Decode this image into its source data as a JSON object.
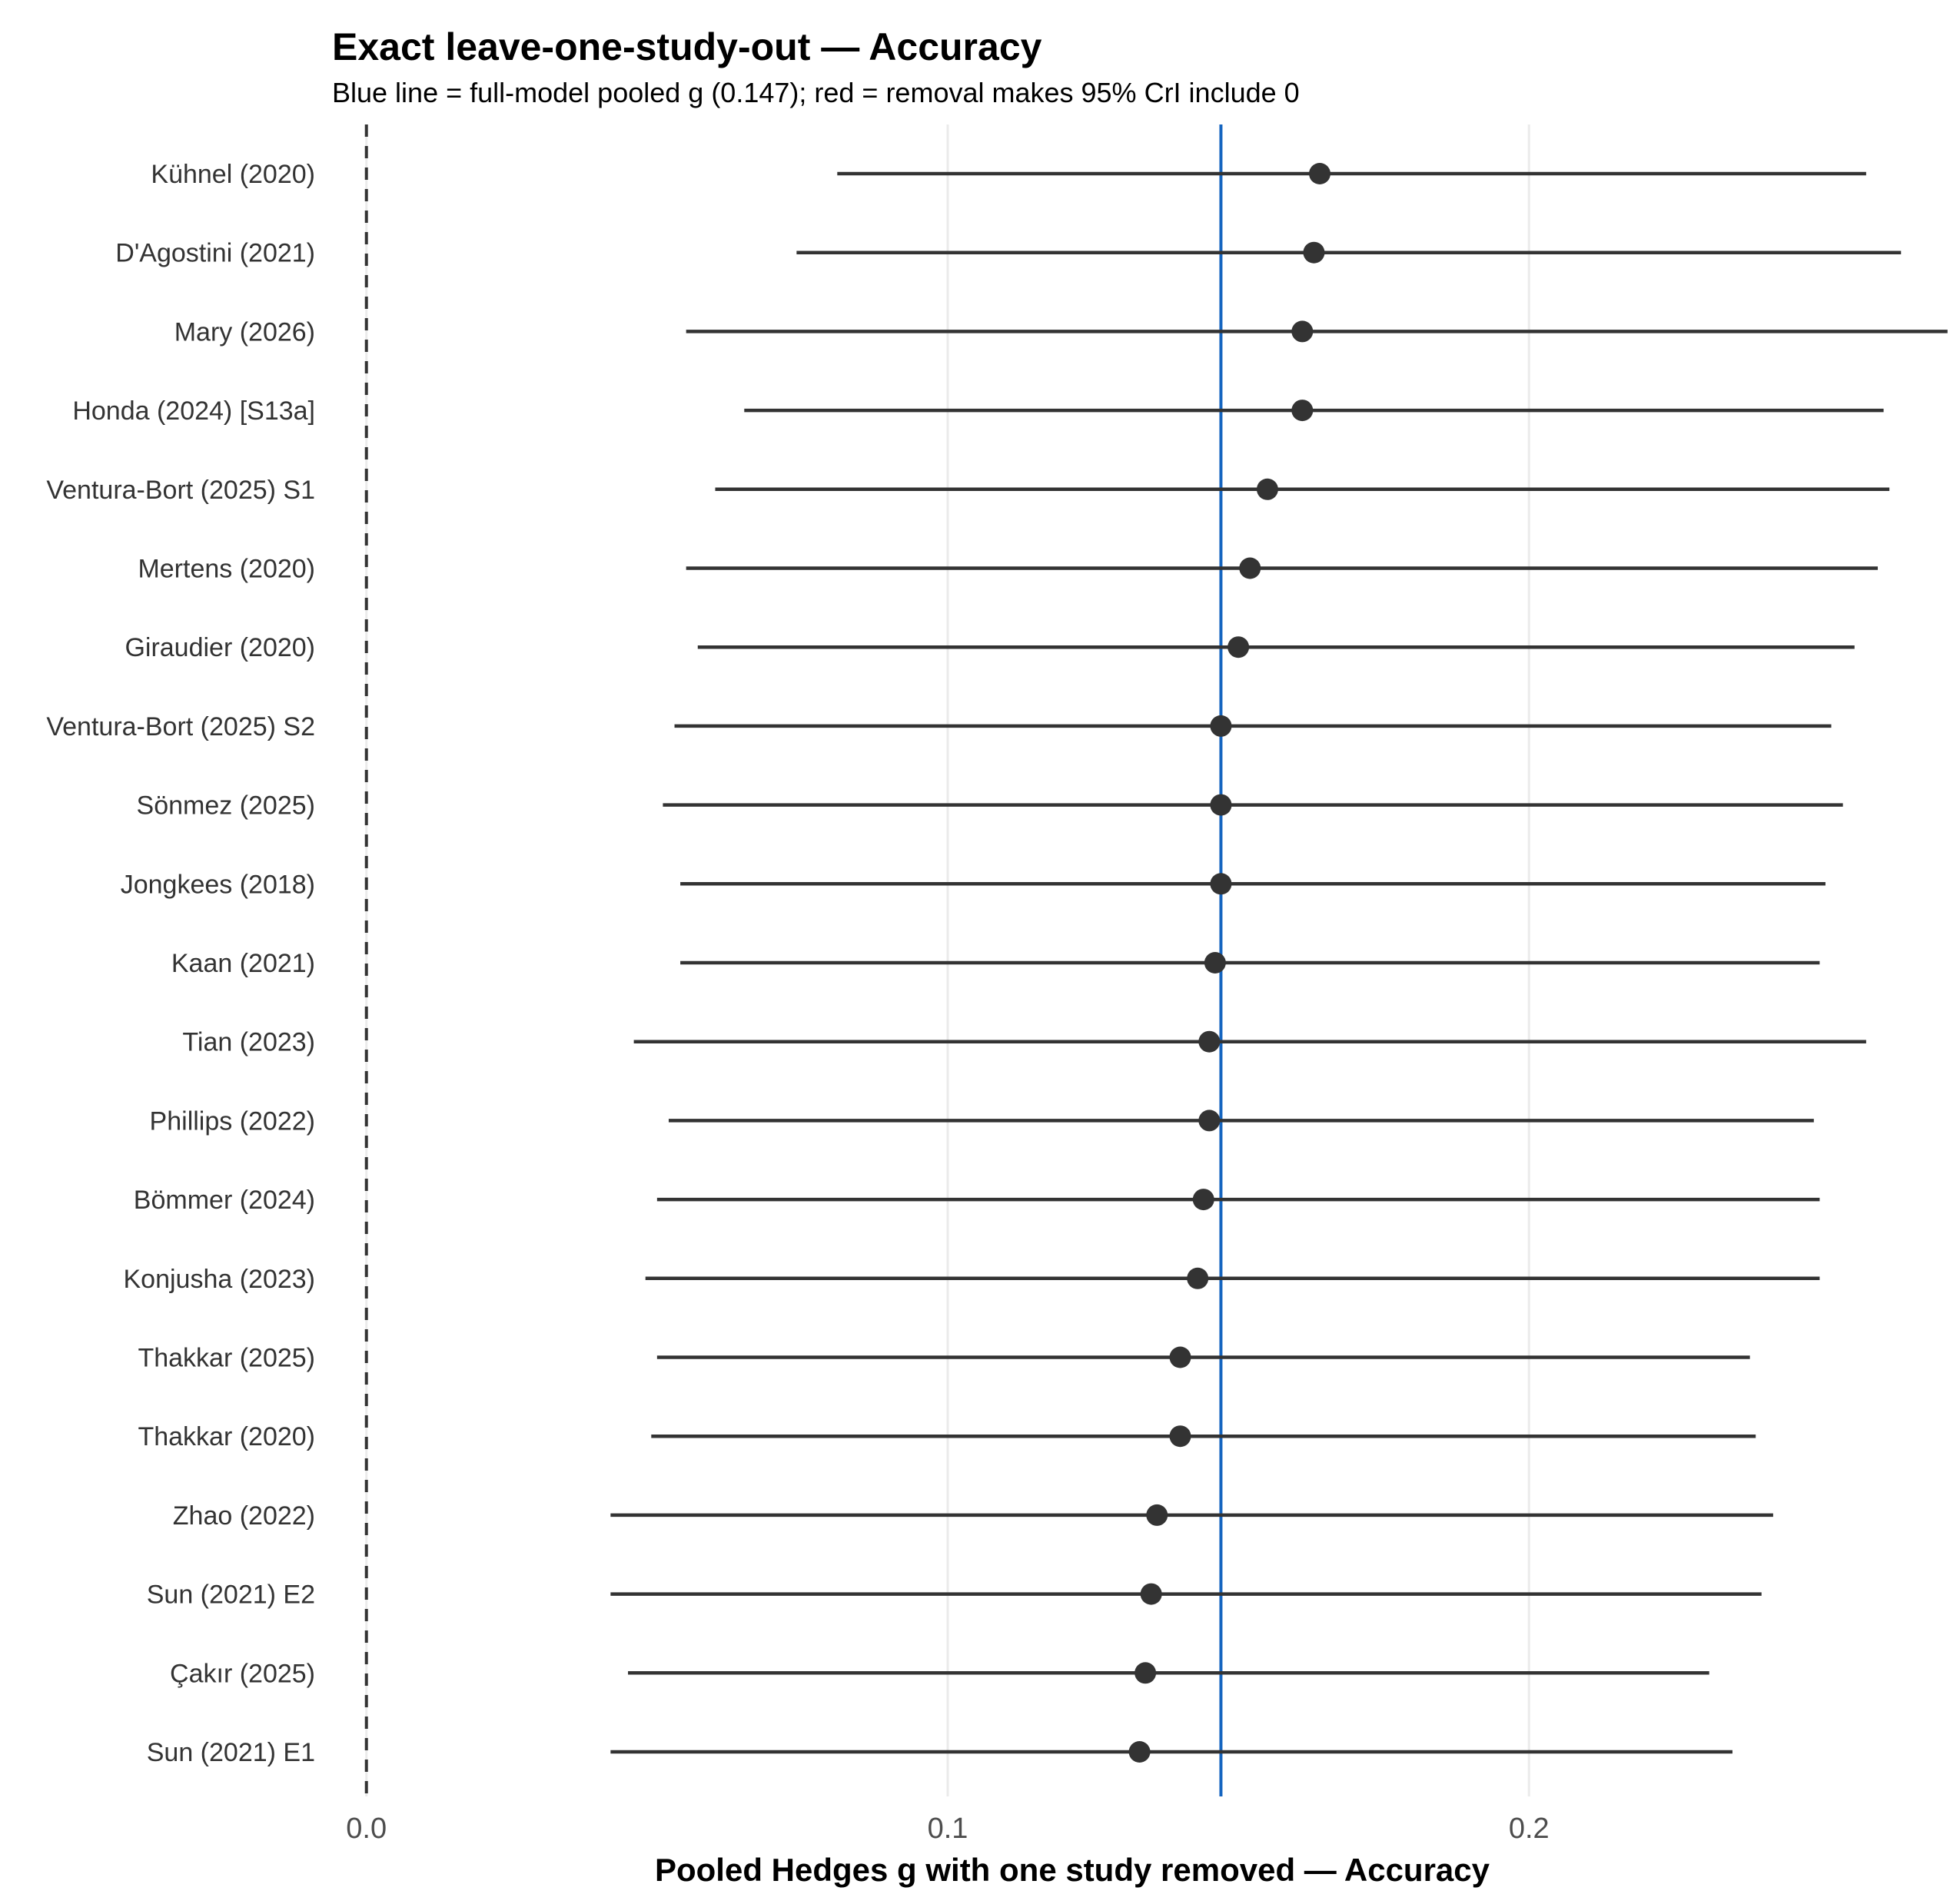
{
  "chart_data": {
    "type": "forest",
    "title": "Exact leave-one-study-out — Accuracy",
    "subtitle": "Blue line = full-model pooled g (0.147); red = removal makes 95% CrI include 0",
    "xlabel": "Pooled Hedges g with one study removed — Accuracy",
    "ylabel": "",
    "xlim": [
      -0.0075,
      0.2715
    ],
    "xticks": [
      0.0,
      0.1,
      0.2
    ],
    "xtick_labels": [
      "0.0",
      "0.1",
      "0.2"
    ],
    "reference_zero": 0.0,
    "full_model_pooled_g": 0.147,
    "grid": "vertical major gridlines",
    "colors": {
      "point": "#333333",
      "interval": "#333333",
      "full_model_line": "#1565c0",
      "zero_line": "#333333",
      "grid": "#ebebeb"
    },
    "studies": [
      {
        "name": "Kühnel (2020)",
        "estimate": 0.164,
        "lower": 0.081,
        "upper": 0.258
      },
      {
        "name": "D'Agostini (2021)",
        "estimate": 0.163,
        "lower": 0.074,
        "upper": 0.264
      },
      {
        "name": "Mary (2026)",
        "estimate": 0.161,
        "lower": 0.055,
        "upper": 0.272
      },
      {
        "name": "Honda (2024) [S13a]",
        "estimate": 0.161,
        "lower": 0.065,
        "upper": 0.261
      },
      {
        "name": "Ventura-Bort (2025) S1",
        "estimate": 0.155,
        "lower": 0.06,
        "upper": 0.262
      },
      {
        "name": "Mertens (2020)",
        "estimate": 0.152,
        "lower": 0.055,
        "upper": 0.26
      },
      {
        "name": "Giraudier (2020)",
        "estimate": 0.15,
        "lower": 0.057,
        "upper": 0.256
      },
      {
        "name": "Ventura-Bort (2025) S2",
        "estimate": 0.147,
        "lower": 0.053,
        "upper": 0.252
      },
      {
        "name": "Sönmez (2025)",
        "estimate": 0.147,
        "lower": 0.051,
        "upper": 0.254
      },
      {
        "name": "Jongkees (2018)",
        "estimate": 0.147,
        "lower": 0.054,
        "upper": 0.251
      },
      {
        "name": "Kaan (2021)",
        "estimate": 0.146,
        "lower": 0.054,
        "upper": 0.25
      },
      {
        "name": "Tian (2023)",
        "estimate": 0.145,
        "lower": 0.046,
        "upper": 0.258
      },
      {
        "name": "Phillips (2022)",
        "estimate": 0.145,
        "lower": 0.052,
        "upper": 0.249
      },
      {
        "name": "Bömmer (2024)",
        "estimate": 0.144,
        "lower": 0.05,
        "upper": 0.25
      },
      {
        "name": "Konjusha (2023)",
        "estimate": 0.143,
        "lower": 0.048,
        "upper": 0.25
      },
      {
        "name": "Thakkar (2025)",
        "estimate": 0.14,
        "lower": 0.05,
        "upper": 0.238
      },
      {
        "name": "Thakkar (2020)",
        "estimate": 0.14,
        "lower": 0.049,
        "upper": 0.239
      },
      {
        "name": "Zhao (2022)",
        "estimate": 0.136,
        "lower": 0.042,
        "upper": 0.242
      },
      {
        "name": "Sun (2021) E2",
        "estimate": 0.135,
        "lower": 0.042,
        "upper": 0.24
      },
      {
        "name": "Çakır (2025)",
        "estimate": 0.134,
        "lower": 0.045,
        "upper": 0.231
      },
      {
        "name": "Sun (2021) E1",
        "estimate": 0.133,
        "lower": 0.042,
        "upper": 0.235
      }
    ]
  }
}
